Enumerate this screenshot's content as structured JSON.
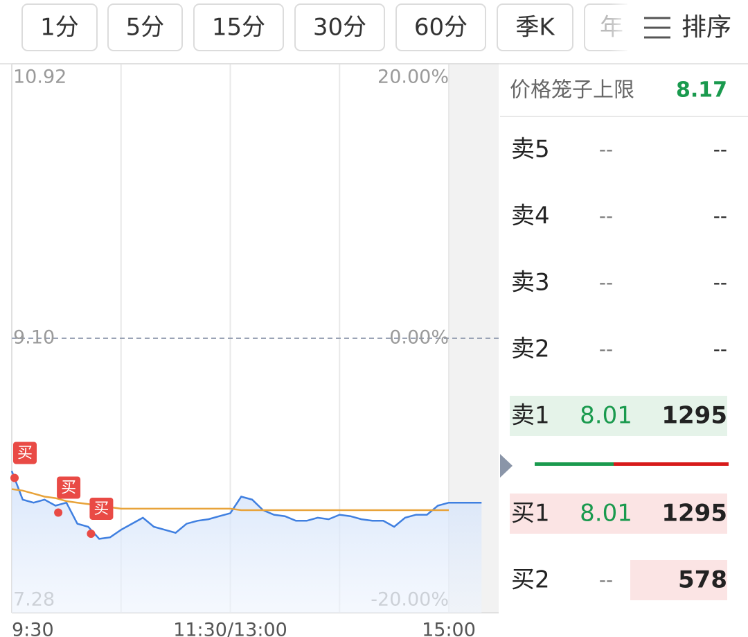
{
  "tabs": [
    "1分",
    "5分",
    "15分",
    "30分",
    "60分",
    "季K",
    "年"
  ],
  "sort_button": "排序",
  "chart_data": {
    "type": "line",
    "categories": [
      "9:30",
      null,
      null,
      null,
      null,
      null,
      null,
      null,
      null,
      null,
      null,
      null,
      null,
      null,
      null,
      null,
      null,
      null,
      null,
      null,
      "11:30/13:00",
      null,
      null,
      null,
      null,
      null,
      null,
      null,
      null,
      null,
      null,
      null,
      null,
      null,
      null,
      null,
      null,
      null,
      null,
      null,
      "15:00",
      null,
      null,
      null
    ],
    "series": [
      {
        "color": "#3f7fe0",
        "values": [
          8.22,
          8.03,
          8.01,
          8.03,
          7.99,
          8.01,
          7.87,
          7.85,
          7.77,
          7.78,
          7.83,
          7.87,
          7.91,
          7.85,
          7.83,
          7.81,
          7.87,
          7.89,
          7.9,
          7.92,
          7.94,
          8.05,
          8.03,
          7.96,
          7.93,
          7.92,
          7.89,
          7.89,
          7.91,
          7.9,
          7.93,
          7.92,
          7.9,
          7.89,
          7.89,
          7.85,
          7.91,
          7.93,
          7.93,
          7.99,
          8.01,
          8.01,
          8.01,
          8.01
        ]
      },
      {
        "color": "#e8a33a",
        "values": [
          8.1,
          8.09,
          8.07,
          8.05,
          8.04,
          8.02,
          8.01,
          8.0,
          7.99,
          7.98,
          7.97,
          7.97,
          7.97,
          7.97,
          7.97,
          7.97,
          7.97,
          7.97,
          7.97,
          7.97,
          7.97,
          7.96,
          7.96,
          7.96,
          7.96,
          7.96,
          7.96,
          7.96,
          7.96,
          7.96,
          7.96,
          7.96,
          7.96,
          7.96,
          7.96,
          7.96,
          7.96,
          7.96,
          7.96,
          7.96,
          7.96,
          null,
          null,
          null
        ]
      }
    ],
    "ylim": [
      7.28,
      10.92
    ],
    "yticks": [
      7.28,
      {
        "value": 9.1,
        "label": "9.10"
      },
      10.92
    ],
    "y2lim": [
      -20,
      20
    ],
    "y2ticks": [
      {
        "value": -20,
        "label": "-20.00%"
      },
      {
        "value": 0,
        "label": "0.00%"
      },
      {
        "value": 20,
        "label": "20.00%"
      }
    ],
    "annotations": [
      {
        "label": "买",
        "index": 0
      },
      {
        "label": "买",
        "index": 4
      },
      {
        "label": "买",
        "index": 7
      }
    ],
    "grid": true
  },
  "order_book": {
    "cage_label": "价格笼子上限",
    "cage_value": 8.17,
    "asks": [
      {
        "label": "卖5",
        "price": "--",
        "volume": "--"
      },
      {
        "label": "卖4",
        "price": "--",
        "volume": "--"
      },
      {
        "label": "卖3",
        "price": "--",
        "volume": "--"
      },
      {
        "label": "卖2",
        "price": "--",
        "volume": "--"
      },
      {
        "label": "卖1",
        "price": 8.01,
        "volume": 1295
      }
    ],
    "bids": [
      {
        "label": "买1",
        "price": 8.01,
        "volume": 1295
      },
      {
        "label": "买2",
        "price": "--",
        "volume": 578
      }
    ]
  }
}
